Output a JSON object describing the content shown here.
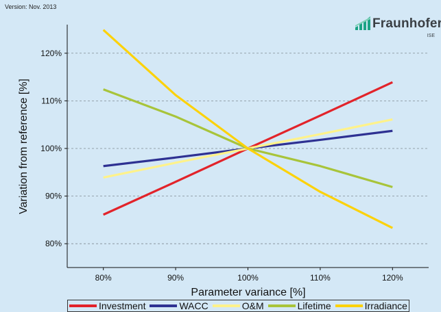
{
  "header": {
    "version": "Version: Nov. 2013"
  },
  "logo": {
    "name": "Fraunhofer",
    "sub": "ISE",
    "color": "#1aa384"
  },
  "chart_data": {
    "type": "line",
    "x": [
      80,
      90,
      100,
      110,
      120
    ],
    "x_tick_labels": [
      "80%",
      "90%",
      "100%",
      "110%",
      "120%"
    ],
    "xlabel": "Parameter variance [%]",
    "ylabel": "Variation from reference [%]",
    "y_tick_values": [
      80,
      90,
      100,
      110,
      120
    ],
    "y_tick_labels": [
      "80%",
      "90%",
      "100%",
      "110%",
      "120%"
    ],
    "xlim": [
      75,
      125
    ],
    "ylim": [
      75,
      126
    ],
    "grid": "horizontal dashed",
    "legend_position": "bottom",
    "series": [
      {
        "name": "Investment",
        "color": "#e2232a",
        "values": [
          86.1,
          93.0,
          100.0,
          106.9,
          113.9
        ]
      },
      {
        "name": "WACC",
        "color": "#2e3192",
        "values": [
          96.3,
          98.1,
          100.0,
          101.8,
          103.7
        ]
      },
      {
        "name": "O&M",
        "color": "#fff28a",
        "values": [
          93.9,
          97.0,
          100.0,
          103.0,
          106.1
        ]
      },
      {
        "name": "Lifetime",
        "color": "#a8c43a",
        "values": [
          112.4,
          106.7,
          100.0,
          96.3,
          91.9
        ]
      },
      {
        "name": "Irradiance",
        "color": "#fcd20a",
        "values": [
          124.9,
          111.2,
          100.0,
          90.9,
          83.3
        ]
      }
    ]
  }
}
